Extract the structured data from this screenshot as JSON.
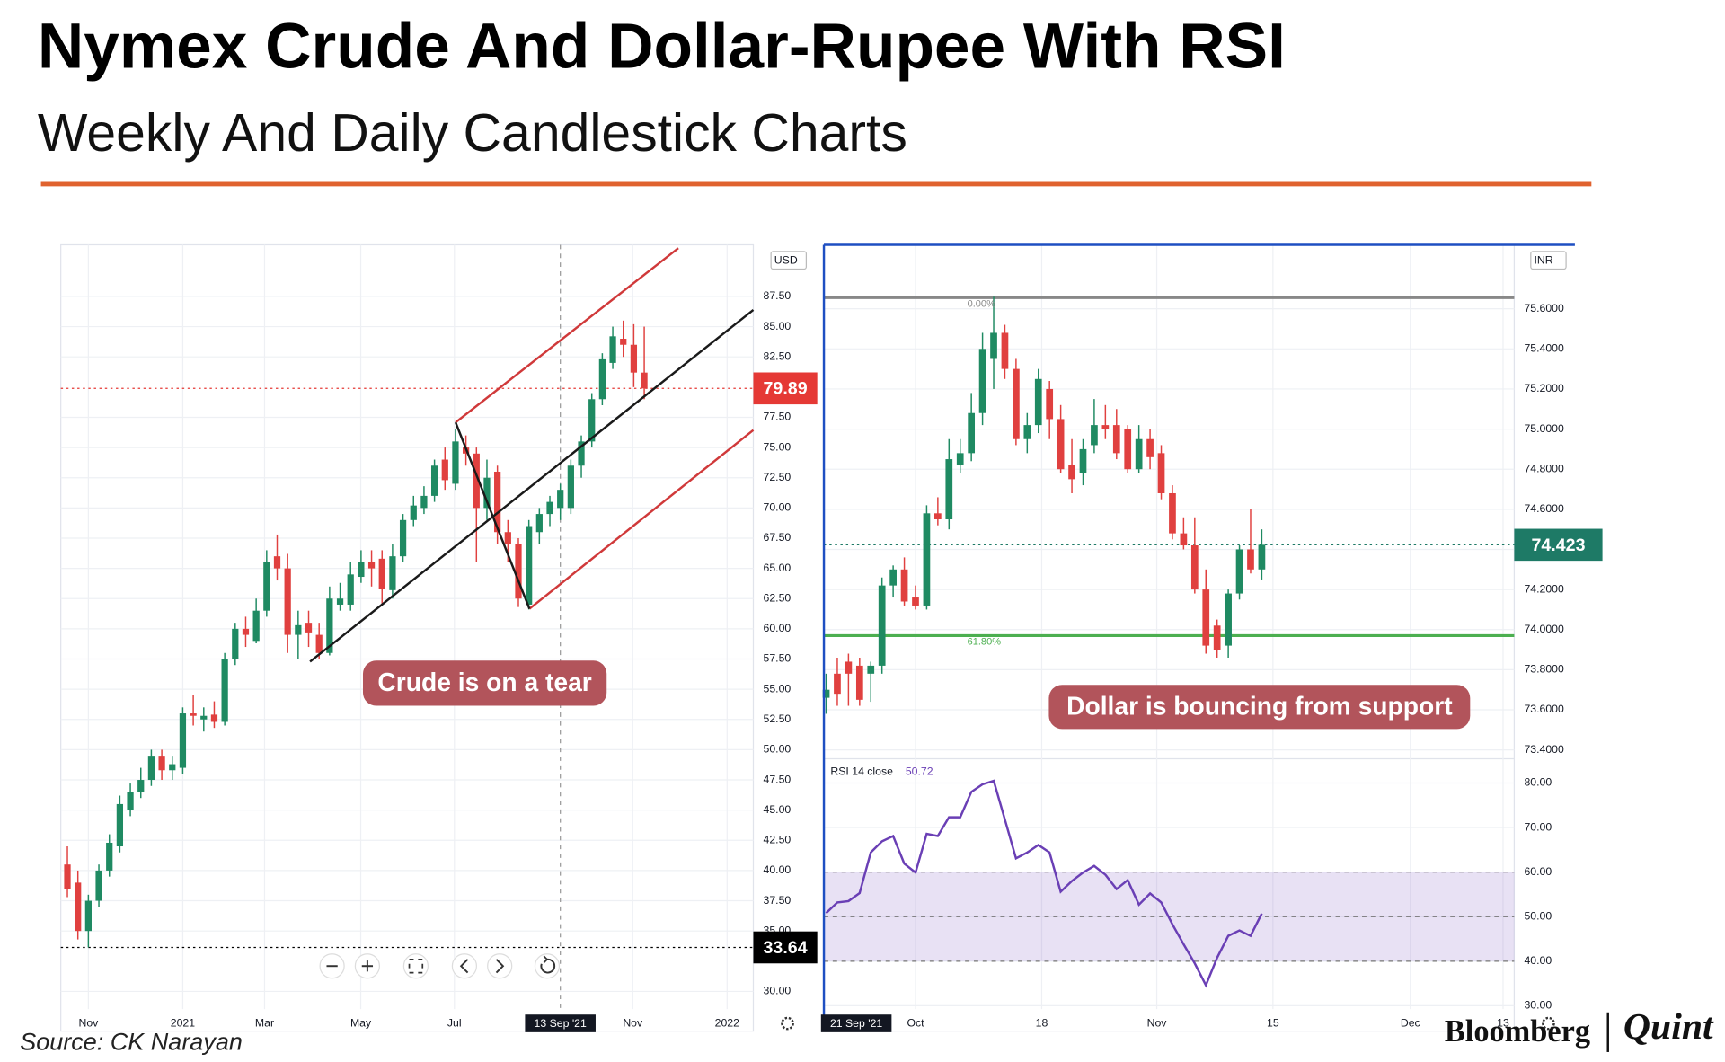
{
  "header": {
    "title": "Nymex Crude And Dollar-Rupee With RSI",
    "subtitle": "Weekly And Daily Candlestick Charts"
  },
  "source": "Source: CK Narayan",
  "logo": {
    "left": "Bloomberg",
    "right": "Quint"
  },
  "chart_data": [
    {
      "type": "candlestick",
      "currency": "USD",
      "callout": "Crude is on a tear",
      "up_color": "#1f8a62",
      "down_color": "#e0403f",
      "open": [
        40.5,
        39.0,
        35.0,
        37.5,
        40.0,
        42.0,
        45.0,
        46.5,
        47.5,
        49.5,
        48.3,
        48.5,
        53.0,
        52.5,
        52.9,
        52.3,
        57.5,
        60.0,
        59.0,
        61.5,
        66.0,
        65.0,
        59.5,
        60.5,
        59.5,
        58.0,
        62.0,
        62.0,
        64.3,
        65.5,
        65.8,
        63.2,
        66.0,
        69.0,
        70.0,
        71.0,
        74.0,
        72.0,
        75.0,
        74.5,
        70.0,
        73.0,
        68.0,
        67.0,
        62.0,
        68.0,
        69.5,
        70.0,
        70.0,
        73.5,
        75.5,
        79.0,
        82.0,
        84.0,
        83.5,
        81.2
      ],
      "high": [
        42.0,
        40.0,
        38.0,
        40.5,
        43.0,
        46.2,
        47.2,
        48.5,
        50.0,
        50.0,
        49.5,
        53.5,
        54.5,
        53.5,
        54.0,
        58.0,
        60.5,
        61.0,
        62.5,
        66.5,
        67.8,
        66.2,
        61.5,
        61.5,
        60.5,
        63.5,
        63.8,
        65.5,
        66.5,
        66.5,
        66.5,
        67.0,
        69.5,
        71.0,
        71.8,
        74.0,
        75.0,
        76.5,
        76.0,
        75.0,
        74.0,
        73.5,
        69.0,
        67.5,
        69.0,
        70.0,
        71.0,
        72.0,
        74.0,
        76.0,
        79.5,
        82.8,
        85.0,
        85.5,
        85.2,
        85.0
      ],
      "low": [
        37.8,
        34.3,
        33.64,
        37.0,
        39.5,
        41.5,
        44.5,
        46.0,
        47.0,
        47.5,
        47.5,
        48.0,
        52.0,
        51.5,
        51.8,
        52.0,
        57.0,
        58.5,
        58.8,
        61.0,
        64.0,
        58.0,
        57.5,
        58.5,
        57.5,
        57.8,
        61.5,
        61.5,
        63.8,
        63.5,
        62.0,
        62.5,
        65.5,
        68.5,
        69.5,
        70.5,
        71.5,
        71.5,
        73.5,
        65.5,
        69.0,
        67.0,
        65.5,
        61.8,
        61.6,
        67.0,
        68.5,
        69.0,
        69.5,
        72.5,
        75.0,
        78.5,
        81.5,
        82.5,
        80.0,
        79.0
      ],
      "close": [
        38.5,
        35.0,
        37.5,
        40.0,
        42.3,
        45.5,
        46.5,
        47.5,
        49.5,
        48.3,
        48.8,
        53.0,
        52.8,
        52.8,
        52.3,
        57.5,
        60.0,
        59.5,
        61.5,
        65.5,
        65.0,
        59.5,
        60.3,
        59.7,
        58.0,
        62.5,
        62.5,
        64.5,
        65.5,
        65.0,
        63.3,
        66.0,
        69.0,
        70.2,
        71.0,
        73.5,
        72.3,
        75.5,
        74.5,
        70.0,
        72.5,
        68.0,
        67.0,
        62.5,
        68.5,
        69.5,
        70.5,
        71.5,
        73.5,
        75.5,
        79.0,
        82.3,
        84.2,
        83.5,
        81.2,
        79.89
      ],
      "xlim": [
        -0.63,
        65.4
      ],
      "xticks": [
        {
          "value": 2.0,
          "label": "Nov"
        },
        {
          "value": 11.0,
          "label": "2021"
        },
        {
          "value": 18.8,
          "label": "Mar"
        },
        {
          "value": 27.97,
          "label": "May"
        },
        {
          "value": 36.9,
          "label": "Jul"
        },
        {
          "value": 53.9,
          "label": "Nov"
        },
        {
          "value": 62.9,
          "label": "2022"
        }
      ],
      "crosshair": {
        "x": 47.0,
        "label": "13 Sep '21",
        "line": true
      },
      "ylim": [
        28.54,
        91.77
      ],
      "yticks": [
        {
          "value": 30,
          "label": "30.00"
        },
        {
          "value": 35,
          "label": "35.00"
        },
        {
          "value": 37.5,
          "label": "37.50"
        },
        {
          "value": 40,
          "label": "40.00"
        },
        {
          "value": 42.5,
          "label": "42.50"
        },
        {
          "value": 45,
          "label": "45.00"
        },
        {
          "value": 47.5,
          "label": "47.50"
        },
        {
          "value": 50,
          "label": "50.00"
        },
        {
          "value": 52.5,
          "label": "52.50"
        },
        {
          "value": 55,
          "label": "55.00"
        },
        {
          "value": 57.5,
          "label": "57.50"
        },
        {
          "value": 60,
          "label": "60.00"
        },
        {
          "value": 62.5,
          "label": "62.50"
        },
        {
          "value": 65,
          "label": "65.00"
        },
        {
          "value": 67.5,
          "label": "67.50"
        },
        {
          "value": 70,
          "label": "70.00"
        },
        {
          "value": 72.5,
          "label": "72.50"
        },
        {
          "value": 75,
          "label": "75.00"
        },
        {
          "value": 77.5,
          "label": "77.50"
        },
        {
          "value": 82.5,
          "label": "82.50"
        },
        {
          "value": 85,
          "label": "85.00"
        },
        {
          "value": 87.5,
          "label": "87.50"
        }
      ],
      "price_lines": [
        {
          "value": 79.89,
          "color": "#e53935"
        },
        {
          "value": 33.64,
          "color": "#000000"
        }
      ]
    },
    {
      "type": "candlestick",
      "currency": "INR",
      "callout": "Dollar is bouncing from support",
      "up_color": "#1f8a62",
      "down_color": "#e0403f",
      "open": [
        73.66,
        73.78,
        73.84,
        73.82,
        73.78,
        73.82,
        74.22,
        74.3,
        74.16,
        74.12,
        74.58,
        74.55,
        74.82,
        74.88,
        75.08,
        75.35,
        75.48,
        75.3,
        74.95,
        75.02,
        75.2,
        75.05,
        74.82,
        74.78,
        74.92,
        75.02,
        75.02,
        75.0,
        74.8,
        74.95,
        74.88,
        74.68,
        74.48,
        74.42,
        74.2,
        74.02,
        73.92,
        74.18,
        74.4,
        74.3
      ],
      "high": [
        73.78,
        73.86,
        73.88,
        73.86,
        73.84,
        74.26,
        74.32,
        74.36,
        74.22,
        74.62,
        74.66,
        74.95,
        74.95,
        75.18,
        75.48,
        75.66,
        75.52,
        75.35,
        75.08,
        75.3,
        75.24,
        75.12,
        74.95,
        74.95,
        75.15,
        75.12,
        75.1,
        75.02,
        75.02,
        75.0,
        74.92,
        74.72,
        74.56,
        74.56,
        74.3,
        74.05,
        74.2,
        74.42,
        74.6,
        74.5
      ],
      "low": [
        73.58,
        73.62,
        73.62,
        73.62,
        73.64,
        73.78,
        74.16,
        74.12,
        74.1,
        74.1,
        74.52,
        74.5,
        74.78,
        74.84,
        75.02,
        75.2,
        75.25,
        74.92,
        74.88,
        74.98,
        74.95,
        74.78,
        74.68,
        74.72,
        74.88,
        74.95,
        74.85,
        74.78,
        74.78,
        74.8,
        74.65,
        74.45,
        74.4,
        74.18,
        73.88,
        73.86,
        73.86,
        74.15,
        74.28,
        74.25
      ],
      "close": [
        73.7,
        73.68,
        73.78,
        73.65,
        73.82,
        74.22,
        74.3,
        74.14,
        74.12,
        74.58,
        74.55,
        74.85,
        74.88,
        75.08,
        75.4,
        75.48,
        75.3,
        74.95,
        75.02,
        75.25,
        75.05,
        74.8,
        74.75,
        74.9,
        75.02,
        75.0,
        74.88,
        74.8,
        74.95,
        74.86,
        74.68,
        74.48,
        74.42,
        74.2,
        73.92,
        73.9,
        74.18,
        74.4,
        74.3,
        74.423
      ],
      "xlim": [
        -0.2,
        61.6
      ],
      "ylim": [
        73.356,
        75.919
      ],
      "yticks": [
        {
          "value": 73.4,
          "label": "73.4000"
        },
        {
          "value": 73.6,
          "label": "73.6000"
        },
        {
          "value": 73.8,
          "label": "73.8000"
        },
        {
          "value": 74.0,
          "label": "74.0000"
        },
        {
          "value": 74.2,
          "label": "74.2000"
        },
        {
          "value": 74.4,
          "label": "74.4000"
        },
        {
          "value": 74.6,
          "label": "74.6000"
        },
        {
          "value": 74.8,
          "label": "74.8000"
        },
        {
          "value": 75.0,
          "label": "75.0000"
        },
        {
          "value": 75.2,
          "label": "75.2000"
        },
        {
          "value": 75.4,
          "label": "75.4000"
        },
        {
          "value": 75.6,
          "label": "75.6000"
        }
      ],
      "levels": [
        {
          "value": 75.655,
          "label": "0.00%",
          "color": "#888888"
        },
        {
          "value": 73.97,
          "label": "61.80%",
          "color": "#4caf50"
        }
      ],
      "price_lines": [
        {
          "value": 74.423,
          "color": "#1e7a66"
        }
      ]
    },
    {
      "type": "line",
      "name": "RSI 14 close",
      "color": "#6a3fb5",
      "values": [
        50.8,
        53.2,
        53.5,
        55.3,
        64.4,
        66.9,
        68.1,
        61.9,
        59.9,
        68.6,
        68.1,
        72.3,
        72.3,
        78.0,
        79.7,
        80.5,
        71.8,
        63.1,
        64.4,
        66.1,
        64.4,
        55.6,
        58.0,
        59.9,
        61.4,
        59.4,
        56.2,
        58.2,
        52.7,
        55.2,
        53.2,
        48.3,
        43.8,
        39.5,
        34.6,
        40.8,
        45.7,
        46.9,
        45.7,
        50.72
      ],
      "xlim": [
        -0.2,
        61.6
      ],
      "xticks": [
        {
          "value": 8.0,
          "label": "Oct"
        },
        {
          "value": 19.3,
          "label": "18"
        },
        {
          "value": 29.6,
          "label": "Nov"
        },
        {
          "value": 40.0,
          "label": "15"
        },
        {
          "value": 52.3,
          "label": "Dec"
        },
        {
          "value": 60.6,
          "label": "13"
        }
      ],
      "crosshair": {
        "x": 2.7,
        "label": "21 Sep '21",
        "line": false
      },
      "ylim": [
        29.26,
        85.45
      ],
      "yticks": [
        {
          "value": 30,
          "label": "30.00"
        },
        {
          "value": 40,
          "label": "40.00"
        },
        {
          "value": 50,
          "label": "50.00"
        },
        {
          "value": 60,
          "label": "60.00"
        },
        {
          "value": 70,
          "label": "70.00"
        },
        {
          "value": 80,
          "label": "80.00"
        }
      ],
      "band": [
        40,
        60
      ],
      "guides": [
        40,
        50,
        60
      ],
      "band_color": "#7e57c2"
    }
  ]
}
